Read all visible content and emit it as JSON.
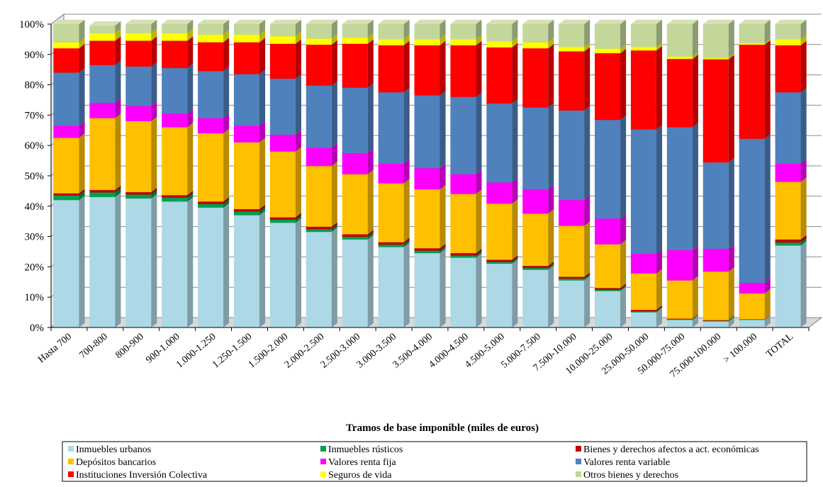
{
  "chart_data": {
    "type": "bar",
    "stacked": true,
    "percent_stacked": true,
    "xlabel": "Tramos de base imponible (miles de euros)",
    "ylabel": "",
    "ylim": [
      0,
      100
    ],
    "yticks": [
      "0%",
      "10%",
      "20%",
      "30%",
      "40%",
      "50%",
      "60%",
      "70%",
      "80%",
      "90%",
      "100%"
    ],
    "legend_position": "bottom",
    "categories": [
      "Hasta 700",
      "700-800",
      "800-900",
      "900-1.000",
      "1.000-1.250",
      "1.250-1.500",
      "1.500-2.000",
      "2.000-2.500",
      "2.500-3.000",
      "3.000-3.500",
      "3.500-4.000",
      "4.000-4.500",
      "4.500-5.000",
      "5.000-7.500",
      "7.500-10.000",
      "10.000-25.000",
      "25.000-50.000",
      "50.000-75.000",
      "75.000-100.000",
      "> 100.000",
      "TOTAL"
    ],
    "series": [
      {
        "name": "Inmuebles urbanos",
        "color": "#ADD8E6",
        "values": [
          42,
          43,
          42.5,
          41.5,
          39.5,
          37,
          34.5,
          31.5,
          29,
          26.5,
          24.5,
          23,
          21,
          19,
          15.5,
          12,
          5,
          2.5,
          2,
          2.5,
          27
        ]
      },
      {
        "name": "Inmuebles rústicos",
        "color": "#00A050",
        "values": [
          1.5,
          1.5,
          1.3,
          1.3,
          1.2,
          1.2,
          1.0,
          0.9,
          0.9,
          0.8,
          0.8,
          0.7,
          0.6,
          0.6,
          0.6,
          0.4,
          0.3,
          0.2,
          0.2,
          0.1,
          1
        ]
      },
      {
        "name": "Bienes y derechos afectos a act. económicas",
        "color": "#C00000",
        "values": [
          0.7,
          0.8,
          0.8,
          0.8,
          0.8,
          0.8,
          0.8,
          0.8,
          0.8,
          0.8,
          0.8,
          0.8,
          0.7,
          0.7,
          0.6,
          0.6,
          0.5,
          0.2,
          0.2,
          0.1,
          1
        ]
      },
      {
        "name": "Depósitos bancarios",
        "color": "#FFC000",
        "values": [
          18.3,
          23.7,
          23.4,
          22.4,
          22.5,
          22,
          21.7,
          20,
          19.8,
          19.4,
          19.4,
          19.5,
          18.5,
          17.2,
          16.8,
          14.4,
          12,
          12.6,
          16,
          8.5,
          19
        ]
      },
      {
        "name": "Valores renta fija",
        "color": "#FF00FF",
        "values": [
          4,
          5,
          5,
          4.5,
          5,
          5.5,
          5.5,
          6,
          7,
          6.5,
          7,
          6.5,
          7,
          8,
          8.5,
          8.5,
          6.5,
          10,
          7.5,
          3.5,
          6
        ]
      },
      {
        "name": "Valores renta variable",
        "color": "#4F81BD",
        "values": [
          17.5,
          12.5,
          13,
          15,
          15.5,
          17,
          18.5,
          20.5,
          21.5,
          23.5,
          24,
          25.5,
          26,
          27,
          29.5,
          32.5,
          41,
          40.5,
          28.5,
          47.5,
          23.5
        ]
      },
      {
        "name": "Instituciones Inversión Colectiva",
        "color": "#FF0000",
        "values": [
          8,
          8,
          8.5,
          9,
          9.5,
          10.5,
          11.5,
          13.5,
          14.5,
          15.5,
          16.5,
          17,
          18.5,
          19.5,
          19.5,
          22,
          26,
          22.5,
          34,
          31,
          15.5
        ]
      },
      {
        "name": "Seguros de vida",
        "color": "#FFFF00",
        "values": [
          2,
          2.5,
          2.5,
          2.5,
          2.5,
          2.5,
          2.5,
          2,
          2,
          2,
          2,
          2,
          2,
          2,
          1.5,
          1.5,
          1.2,
          0.8,
          0.5,
          0.5,
          2
        ]
      },
      {
        "name": "Otros bienes y derechos",
        "color": "#C4D79B",
        "values": [
          6,
          2.5,
          3,
          3,
          3.5,
          3.5,
          4,
          4.8,
          4.5,
          5,
          5,
          5,
          5.7,
          6,
          7.5,
          8.1,
          7.5,
          10.7,
          11.1,
          6.3,
          5
        ]
      }
    ]
  }
}
